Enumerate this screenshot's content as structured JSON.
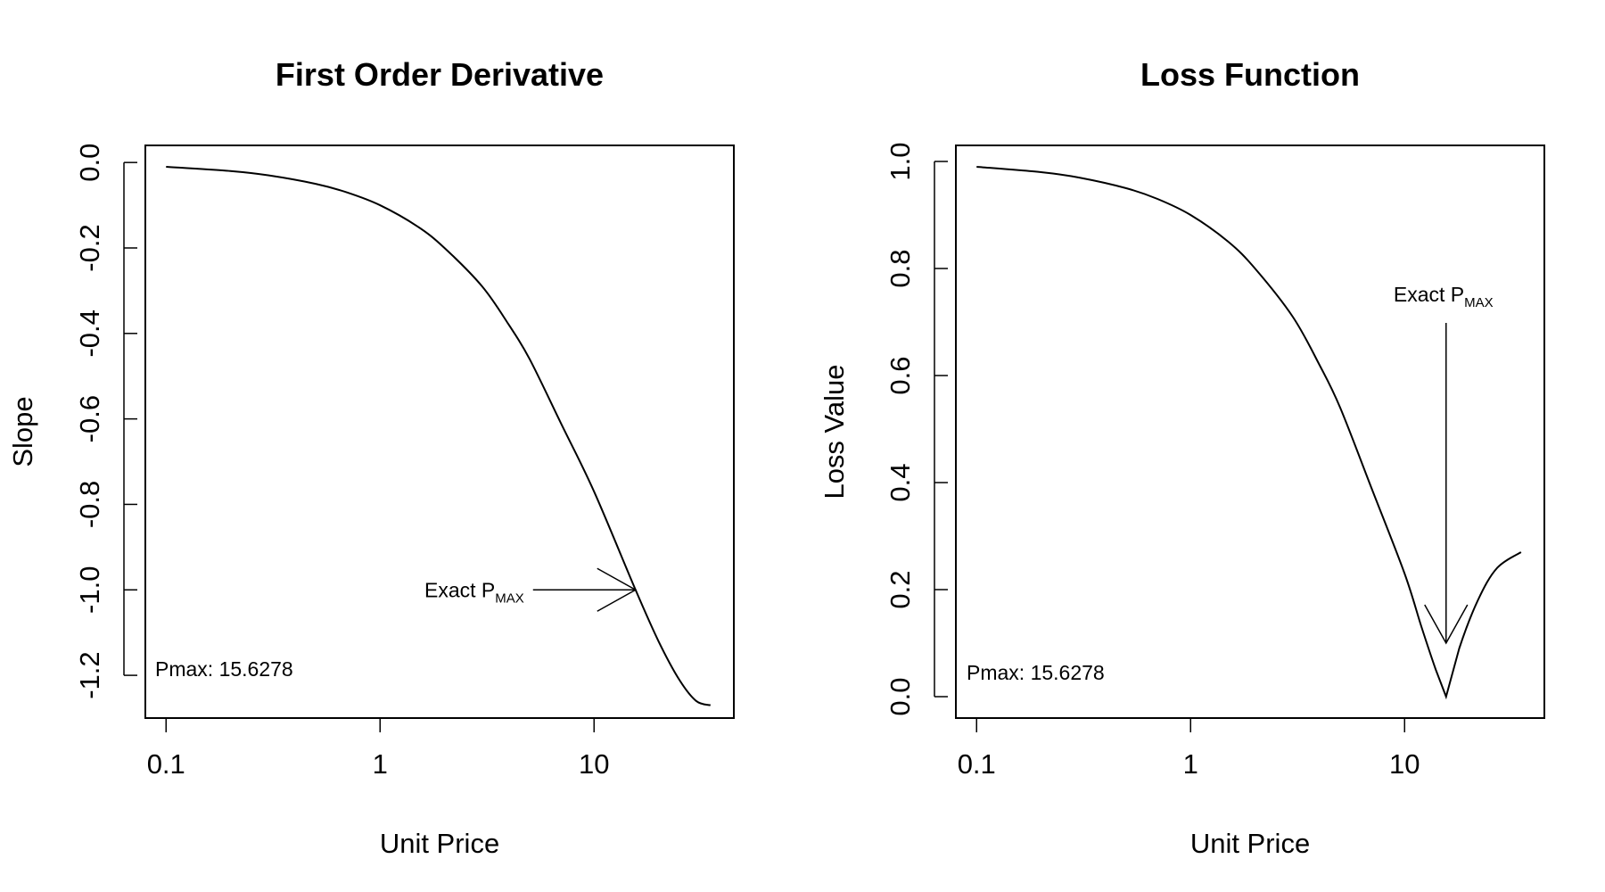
{
  "chart_data": [
    {
      "id": "derivative",
      "type": "line",
      "title": "First Order Derivative",
      "xlabel": "Unit Price",
      "ylabel": "Slope",
      "x_scale": "log",
      "xlim": [
        0.08,
        45
      ],
      "ylim": [
        -1.3,
        0.04
      ],
      "x_ticks": [
        0.1,
        1,
        10
      ],
      "x_tick_labels": [
        "0.1",
        "1",
        "10"
      ],
      "y_ticks": [
        0.0,
        -0.2,
        -0.4,
        -0.6,
        -0.8,
        -1.0,
        -1.2
      ],
      "y_tick_labels": [
        "0.0",
        "-0.2",
        "-0.4",
        "-0.6",
        "-0.8",
        "-1.0",
        "-1.2"
      ],
      "grid": false,
      "series": [
        {
          "x": [
            0.1,
            0.2,
            0.3,
            0.5,
            0.7,
            1,
            1.5,
            2,
            3,
            4,
            5,
            7,
            10,
            15.6278,
            20,
            25,
            30,
            35
          ],
          "y": [
            -0.01,
            -0.02,
            -0.03,
            -0.05,
            -0.07,
            -0.1,
            -0.15,
            -0.2,
            -0.29,
            -0.38,
            -0.46,
            -0.61,
            -0.77,
            -1.0,
            -1.12,
            -1.21,
            -1.26,
            -1.27
          ]
        }
      ],
      "annotation": {
        "text_main": "Exact P",
        "text_sub": "MAX",
        "arrow_direction": "right",
        "target": {
          "x": 15.6278,
          "y": -1.0
        }
      },
      "pmax_label": "Pmax: 15.6278"
    },
    {
      "id": "loss",
      "type": "line",
      "title": "Loss Function",
      "xlabel": "Unit Price",
      "ylabel": "Loss Value",
      "x_scale": "log",
      "xlim": [
        0.08,
        45
      ],
      "ylim": [
        -0.04,
        1.03
      ],
      "x_ticks": [
        0.1,
        1,
        10
      ],
      "x_tick_labels": [
        "0.1",
        "1",
        "10"
      ],
      "y_ticks": [
        0.0,
        0.2,
        0.4,
        0.6,
        0.8,
        1.0
      ],
      "y_tick_labels": [
        "0.0",
        "0.2",
        "0.4",
        "0.6",
        "0.8",
        "1.0"
      ],
      "grid": false,
      "series": [
        {
          "x": [
            0.1,
            0.2,
            0.3,
            0.5,
            0.7,
            1,
            1.5,
            2,
            3,
            4,
            5,
            7,
            10,
            12,
            14,
            15.6278,
            18,
            22,
            27,
            35
          ],
          "y": [
            0.99,
            0.98,
            0.97,
            0.95,
            0.93,
            0.9,
            0.85,
            0.8,
            0.71,
            0.62,
            0.54,
            0.39,
            0.23,
            0.13,
            0.05,
            0.0,
            0.09,
            0.18,
            0.24,
            0.27
          ]
        }
      ],
      "annotation": {
        "text_main": "Exact P",
        "text_sub": "MAX",
        "arrow_direction": "down",
        "target": {
          "x": 15.6278,
          "y": 0.1
        }
      },
      "pmax_label": "Pmax: 15.6278"
    }
  ]
}
